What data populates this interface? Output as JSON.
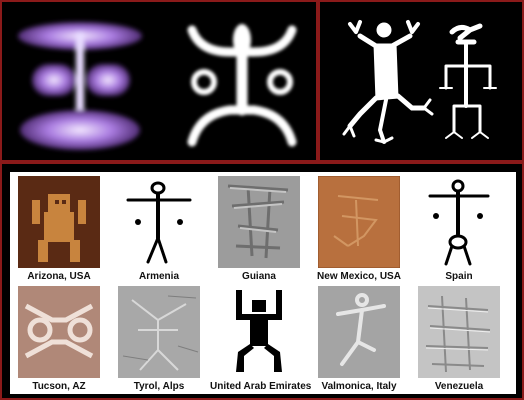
{
  "captions": [
    "Arizona, USA",
    "Armenia",
    "Guiana",
    "New Mexico, USA",
    "Spain",
    "Tucson, AZ",
    "Tyrol, Alps",
    "United Arab Emirates",
    "Valmonica, Italy",
    "Venezuela"
  ]
}
